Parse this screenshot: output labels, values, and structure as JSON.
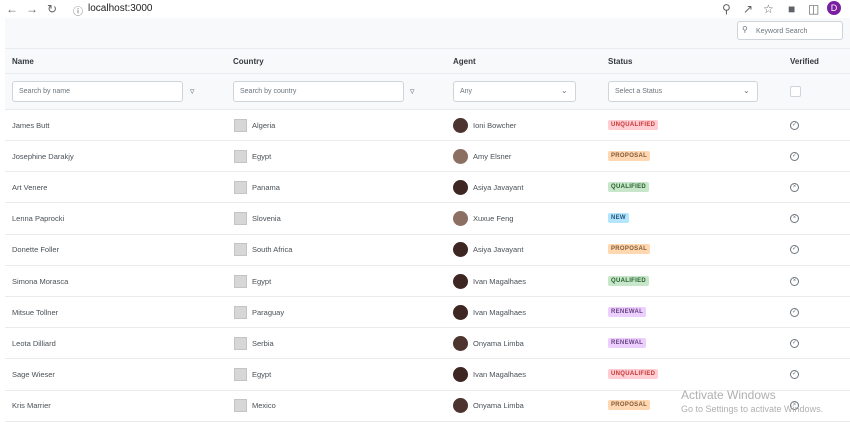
{
  "browser": {
    "url": "localhost:3000",
    "avatar": "D"
  },
  "toolbar": {
    "search_placeholder": "Keyword Search"
  },
  "table": {
    "columns": [
      "Name",
      "Country",
      "Agent",
      "Status",
      "Verified"
    ],
    "filters": {
      "name": "Search by name",
      "country": "Search by country",
      "agent": "Any",
      "status": "Select a Status"
    },
    "rows": [
      {
        "name": "James Butt",
        "country": "Algeria",
        "agent": "Ioni Bowcher",
        "status": "UNQUALIFIED",
        "verified": true
      },
      {
        "name": "Josephine Darakjy",
        "country": "Egypt",
        "agent": "Amy Elsner",
        "status": "PROPOSAL",
        "verified": true
      },
      {
        "name": "Art Venere",
        "country": "Panama",
        "agent": "Asiya Javayant",
        "status": "QUALIFIED",
        "verified": false
      },
      {
        "name": "Lenna Paprocki",
        "country": "Slovenia",
        "agent": "Xuxue Feng",
        "status": "NEW",
        "verified": false
      },
      {
        "name": "Donette Foller",
        "country": "South Africa",
        "agent": "Asiya Javayant",
        "status": "PROPOSAL",
        "verified": true
      },
      {
        "name": "Simona Morasca",
        "country": "Egypt",
        "agent": "Ivan Magalhaes",
        "status": "QUALIFIED",
        "verified": false
      },
      {
        "name": "Mitsue Tollner",
        "country": "Paraguay",
        "agent": "Ivan Magalhaes",
        "status": "RENEWAL",
        "verified": true
      },
      {
        "name": "Leota Dilliard",
        "country": "Serbia",
        "agent": "Onyama Limba",
        "status": "RENEWAL",
        "verified": true
      },
      {
        "name": "Sage Wieser",
        "country": "Egypt",
        "agent": "Ivan Magalhaes",
        "status": "UNQUALIFIED",
        "verified": true
      },
      {
        "name": "Kris Marrier",
        "country": "Mexico",
        "agent": "Onyama Limba",
        "status": "PROPOSAL",
        "verified": false
      }
    ]
  },
  "watermark": {
    "title": "Activate Windows",
    "subtitle": "Go to Settings to activate Windows."
  }
}
